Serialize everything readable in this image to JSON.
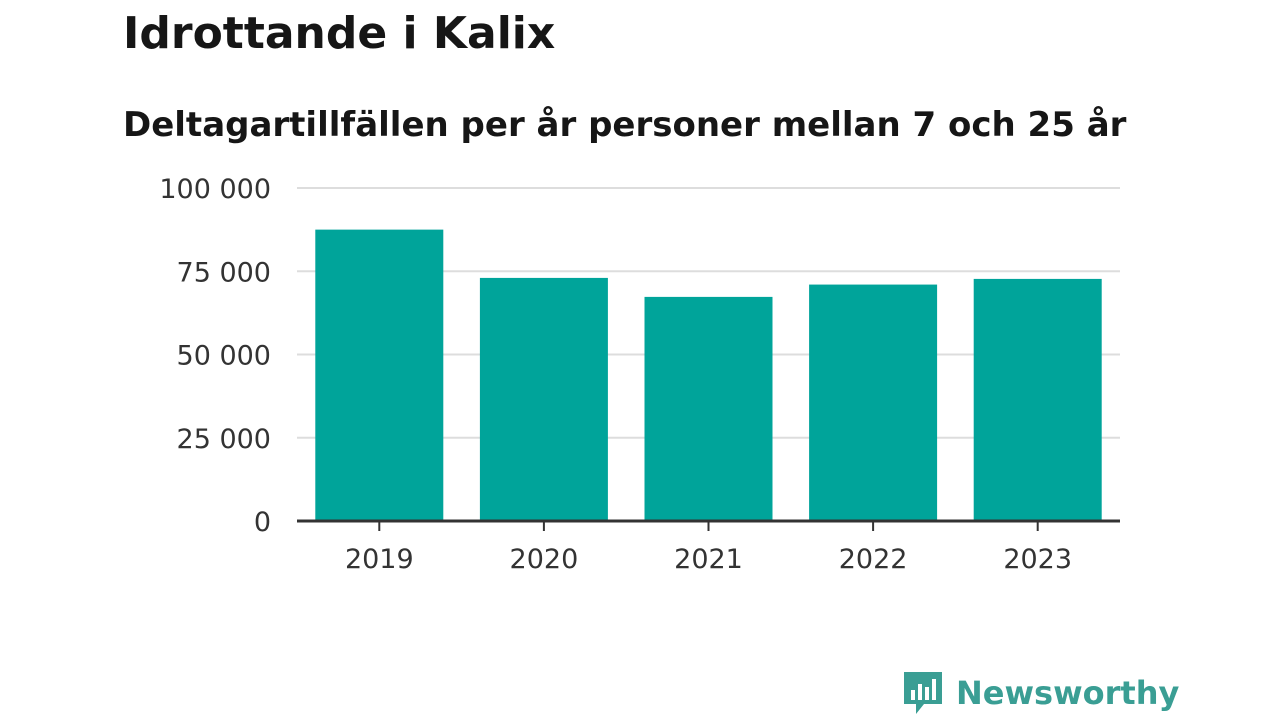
{
  "chart_data": {
    "type": "bar",
    "title": "Idrottande i Kalix",
    "subtitle": "Deltagartillfällen per år personer mellan 7 och 25 år",
    "categories": [
      "2019",
      "2020",
      "2021",
      "2022",
      "2023"
    ],
    "values": [
      87500,
      73000,
      67300,
      71000,
      72700
    ],
    "ylim": [
      0,
      100000
    ],
    "yticks": [
      0,
      25000,
      50000,
      75000,
      100000
    ],
    "ytick_labels": [
      "0",
      "25 000",
      "50 000",
      "75 000",
      "100 000"
    ],
    "xlabel": "",
    "ylabel": "",
    "grid": true,
    "legend": "none"
  },
  "colors": {
    "bar": "#00a49a",
    "grid": "#dddddd",
    "axis": "#333333",
    "text": "#161616",
    "brand": "#3a9e94"
  },
  "brand": {
    "name": "Newsworthy",
    "icon": "bar-chart-speech-bubble-icon"
  }
}
